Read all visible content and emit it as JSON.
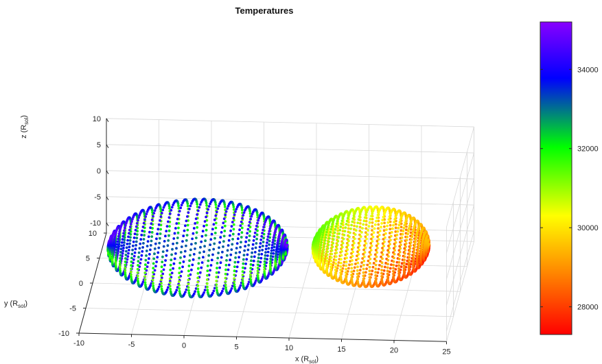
{
  "chart_data": {
    "type": "scatter",
    "title": "Temperatures",
    "xlabel": "x (R",
    "ylabel": "y (R",
    "zlabel": "z (R",
    "label_subscript": "sol",
    "label_close": ")",
    "xlim": [
      -10,
      25
    ],
    "ylim": [
      -10,
      10
    ],
    "zlim": [
      -12,
      10
    ],
    "xticks": [
      "-10",
      "-5",
      "0",
      "5",
      "10",
      "15",
      "20",
      "25"
    ],
    "yticks": [
      "-10",
      "-5",
      "0",
      "5",
      "10"
    ],
    "zticks": [
      "-10",
      "-5",
      "0",
      "5",
      "10"
    ],
    "grid": true,
    "colormap": "rainbow (red to violet)",
    "colorbar": {
      "range": [
        27300,
        35200
      ],
      "ticks": [
        "28000",
        "30000",
        "32000",
        "34000"
      ],
      "tick_values": [
        28000,
        30000,
        32000,
        34000
      ],
      "colors": [
        "#ff0000",
        "#ff8800",
        "#ffff00",
        "#00ff00",
        "#0000ff",
        "#8800ff"
      ]
    },
    "series": [
      {
        "shape": "ellipsoidal star (distorted, tidally stretched toward companion)",
        "center": [
          0,
          0,
          -4.8
        ],
        "radii": [
          8.5,
          6.8,
          6.8
        ],
        "temperature_range": [
          31000,
          35000
        ]
      },
      {
        "shape": "ellipsoidal star",
        "center": [
          16.5,
          0,
          -3.8
        ],
        "radii": [
          5.5,
          5.5,
          5.6
        ],
        "temperature_range": [
          27500,
          31500
        ]
      }
    ]
  }
}
